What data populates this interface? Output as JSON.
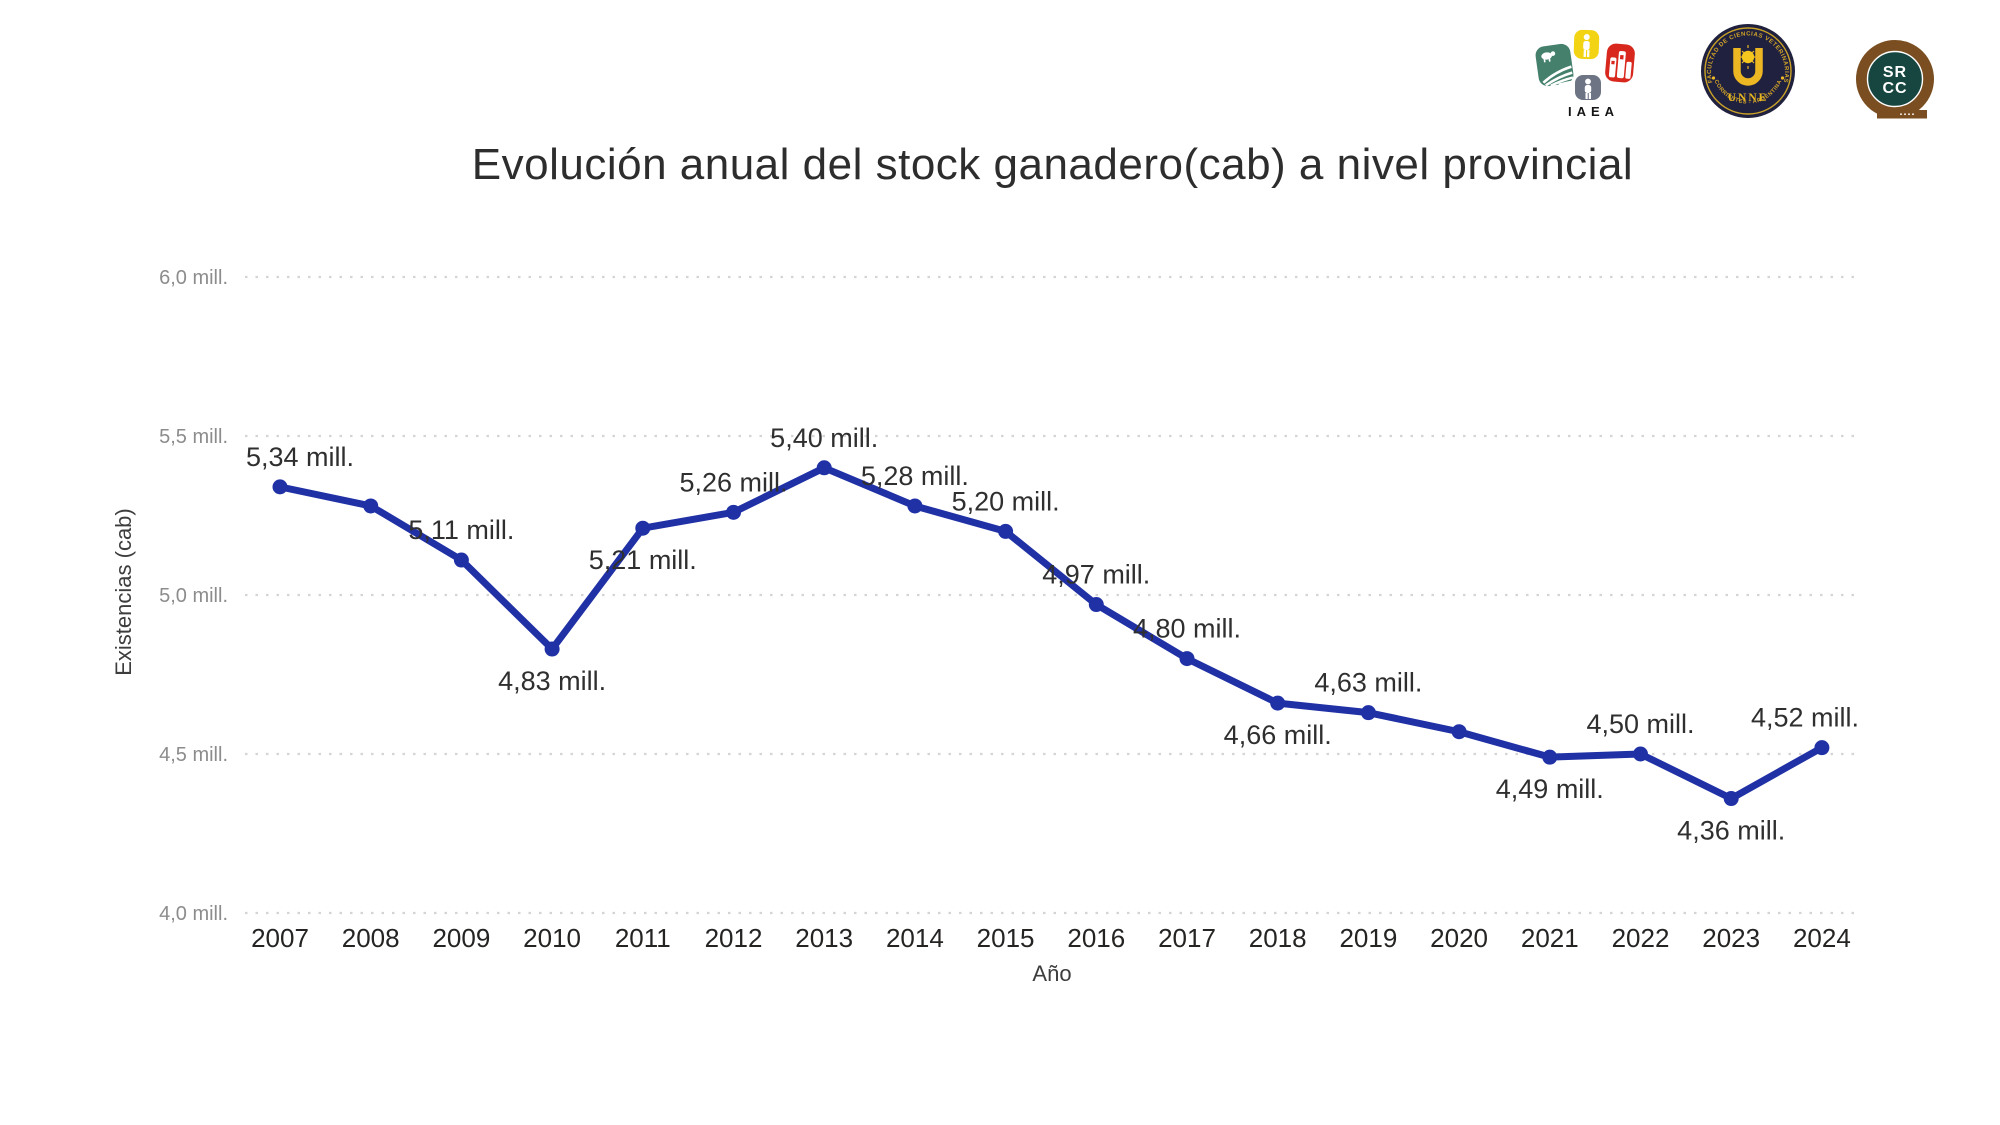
{
  "header": {
    "logos": [
      {
        "name": "iaea-logo",
        "caption": "IAEA"
      },
      {
        "name": "unne-logo",
        "ring_text_top": "FACULTAD DE CIENCIAS VETERINARIAS",
        "center_text": "UNNE",
        "ring_text_bottom": "CORRIENTES - ARGENTINA"
      },
      {
        "name": "srcc-logo",
        "line1": "SR",
        "line2": "CC"
      }
    ]
  },
  "chart_data": {
    "type": "line",
    "title": "Evolución anual del stock ganadero(cab) a nivel provincial",
    "xlabel": "Año",
    "ylabel": "Existencias (cab)",
    "x": [
      2007,
      2008,
      2009,
      2010,
      2011,
      2012,
      2013,
      2014,
      2015,
      2016,
      2017,
      2018,
      2019,
      2020,
      2021,
      2022,
      2023,
      2024
    ],
    "series": [
      {
        "name": "Existencias (cab)",
        "values": [
          5.34,
          5.28,
          5.11,
          4.83,
          5.21,
          5.26,
          5.4,
          5.28,
          5.2,
          4.97,
          4.8,
          4.66,
          4.63,
          4.57,
          4.49,
          4.5,
          4.36,
          4.52
        ]
      }
    ],
    "point_labels": [
      "5,34 mill.",
      null,
      "5,11 mill.",
      "4,83 mill.",
      "5,21 mill.",
      "5,26 mill.",
      "5,40 mill.",
      "5,28 mill.",
      "5,20 mill.",
      "4,97 mill.",
      "4,80 mill.",
      "4,66 mill.",
      "4,63 mill.",
      null,
      "4,49 mill.",
      "4,50 mill.",
      "4,36 mill.",
      "4,52 mill."
    ],
    "label_positions": [
      "above",
      null,
      "above",
      "below",
      "below",
      "above",
      "above",
      "above",
      "above",
      "above",
      "above",
      "below",
      "above",
      null,
      "below",
      "above",
      "below",
      "above"
    ],
    "yticks": [
      {
        "value": 4.0,
        "label": "4,0 mill."
      },
      {
        "value": 4.5,
        "label": "4,5 mill."
      },
      {
        "value": 5.0,
        "label": "5,0 mill."
      },
      {
        "value": 5.5,
        "label": "5,5 mill."
      },
      {
        "value": 6.0,
        "label": "6,0 mill."
      }
    ],
    "ylim": [
      4.0,
      6.0
    ],
    "grid": "horizontal-dotted",
    "legend": "none",
    "line_color": "#2031a6",
    "marker": "circle",
    "grid_color": "#d4d4d4",
    "background": "#ffffff"
  }
}
